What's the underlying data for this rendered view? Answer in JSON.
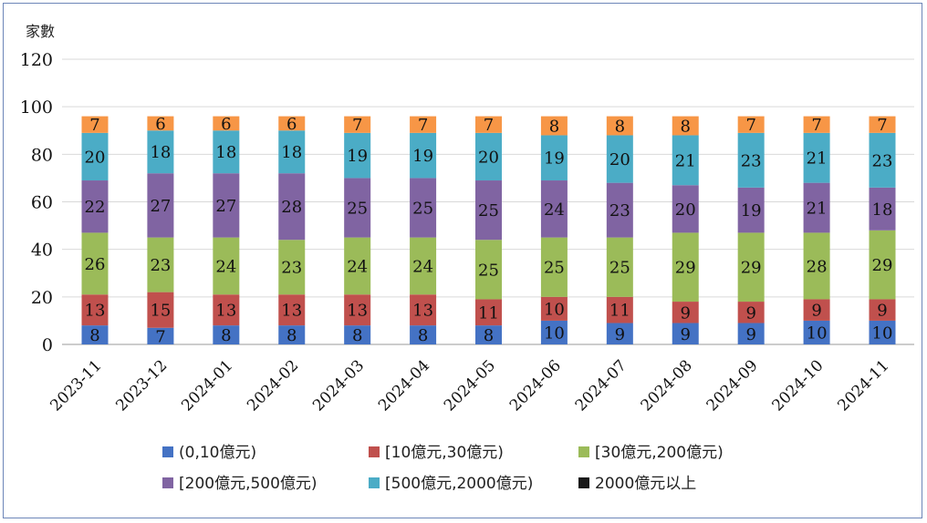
{
  "chart_data": {
    "type": "bar",
    "stacked": true,
    "ylabel": "家數",
    "ylim": [
      0,
      120
    ],
    "yticks": [
      0,
      20,
      40,
      60,
      80,
      100,
      120
    ],
    "grid": true,
    "legend_position": "bottom",
    "categories": [
      "2023-11",
      "2023-12",
      "2024-01",
      "2024-02",
      "2024-03",
      "2024-04",
      "2024-05",
      "2024-06",
      "2024-07",
      "2024-08",
      "2024-09",
      "2024-10",
      "2024-11"
    ],
    "series": [
      {
        "name": "(0,10億元)",
        "color": "#4472c4",
        "values": [
          8,
          7,
          8,
          8,
          8,
          8,
          8,
          10,
          9,
          9,
          9,
          10,
          10
        ]
      },
      {
        "name": "[10億元,30億元)",
        "color": "#c0504d",
        "values": [
          13,
          15,
          13,
          13,
          13,
          13,
          11,
          10,
          11,
          9,
          9,
          9,
          9
        ]
      },
      {
        "name": "[30億元,200億元)",
        "color": "#9bbb59",
        "values": [
          26,
          23,
          24,
          23,
          24,
          24,
          25,
          25,
          25,
          29,
          29,
          28,
          29
        ]
      },
      {
        "name": "[200億元,500億元)",
        "color": "#8064a2",
        "values": [
          22,
          27,
          27,
          28,
          25,
          25,
          25,
          24,
          23,
          20,
          19,
          21,
          18
        ]
      },
      {
        "name": "[500億元,2000億元)",
        "color": "#4bacc6",
        "values": [
          20,
          18,
          18,
          18,
          19,
          19,
          20,
          19,
          20,
          21,
          23,
          21,
          23
        ]
      },
      {
        "name": "2000億元以上",
        "color": "#f79646",
        "legend_color": "#1a1a1a",
        "values": [
          7,
          6,
          6,
          6,
          7,
          7,
          7,
          8,
          8,
          8,
          7,
          7,
          7
        ]
      }
    ]
  }
}
